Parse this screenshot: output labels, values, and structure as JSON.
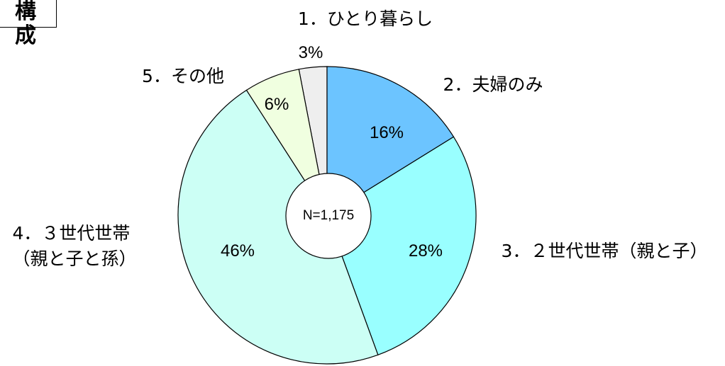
{
  "chart_data": {
    "type": "pie",
    "title": "構成",
    "center_label": "N=1,175",
    "categories": [
      "1．ひとり暮らし",
      "2．夫婦のみ",
      "3．２世代世帯（親と子）",
      "4．３世代世帯\n（親と子と孫）",
      "5．その他"
    ],
    "values": [
      3,
      16,
      28,
      46,
      6
    ],
    "value_labels": [
      "3%",
      "16%",
      "28%",
      "46%",
      "6%"
    ],
    "colors": [
      "#eeeeee",
      "#6cc4ff",
      "#99ffff",
      "#ccfff5",
      "#f0ffe0"
    ]
  }
}
